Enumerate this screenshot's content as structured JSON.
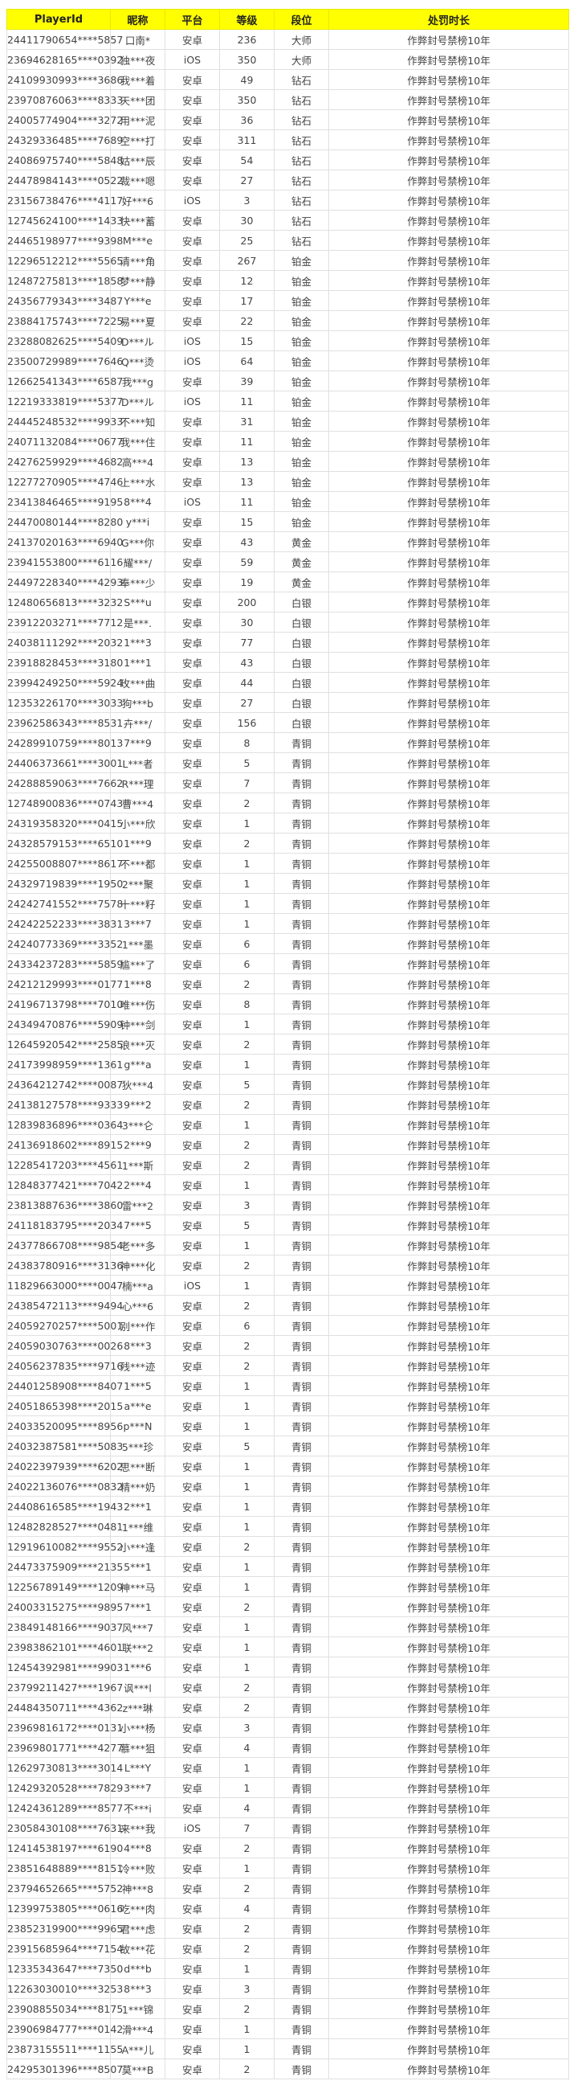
{
  "table": {
    "header_bg": "#ffff00",
    "columns": [
      "PlayerId",
      "昵称",
      "平台",
      "等级",
      "段位",
      "处罚时长"
    ],
    "rows": [
      [
        "24411790654****5857",
        "口南*",
        "安卓",
        "236",
        "大师",
        "作弊封号禁榜10年"
      ],
      [
        "23694628165****0392",
        "独***夜",
        "iOS",
        "350",
        "大师",
        "作弊封号禁榜10年"
      ],
      [
        "24109930993****3686",
        "我***着",
        "安卓",
        "49",
        "钻石",
        "作弊封号禁榜10年"
      ],
      [
        "23970876063****8333",
        "天***团",
        "安卓",
        "350",
        "钻石",
        "作弊封号禁榜10年"
      ],
      [
        "24005774904****3272",
        "用***泥",
        "安卓",
        "36",
        "钻石",
        "作弊封号禁榜10年"
      ],
      [
        "24329336485****7689",
        "空***打",
        "安卓",
        "311",
        "钻石",
        "作弊封号禁榜10年"
      ],
      [
        "24086975740****5848",
        "姑***辰",
        "安卓",
        "54",
        "钻石",
        "作弊封号禁榜10年"
      ],
      [
        "24478984143****0522",
        "裁***嗯",
        "安卓",
        "27",
        "钻石",
        "作弊封号禁榜10年"
      ],
      [
        "23156738476****4117",
        "好***6",
        "iOS",
        "3",
        "钻石",
        "作弊封号禁榜10年"
      ],
      [
        "12745624100****1433",
        "快***蓄",
        "安卓",
        "30",
        "钻石",
        "作弊封号禁榜10年"
      ],
      [
        "24465198977****9398",
        "M***e",
        "安卓",
        "25",
        "钻石",
        "作弊封号禁榜10年"
      ],
      [
        "12296512212****5565",
        "清***角",
        "安卓",
        "267",
        "铂金",
        "作弊封号禁榜10年"
      ],
      [
        "12487275813****1858",
        "梦***静",
        "安卓",
        "12",
        "铂金",
        "作弊封号禁榜10年"
      ],
      [
        "24356779343****3487",
        "Y***e",
        "安卓",
        "17",
        "铂金",
        "作弊封号禁榜10年"
      ],
      [
        "23884175743****7225",
        "易***夏",
        "安卓",
        "22",
        "铂金",
        "作弊封号禁榜10年"
      ],
      [
        "23288082625****5409",
        "D***ル",
        "iOS",
        "15",
        "铂金",
        "作弊封号禁榜10年"
      ],
      [
        "23500729989****7646",
        "Q***烫",
        "iOS",
        "64",
        "铂金",
        "作弊封号禁榜10年"
      ],
      [
        "12662541343****6587",
        "我***g",
        "安卓",
        "39",
        "铂金",
        "作弊封号禁榜10年"
      ],
      [
        "12219333819****5377",
        "D***ル",
        "iOS",
        "11",
        "铂金",
        "作弊封号禁榜10年"
      ],
      [
        "24445248532****9933",
        "不***知",
        "安卓",
        "31",
        "铂金",
        "作弊封号禁榜10年"
      ],
      [
        "24071132084****0677",
        "我***住",
        "安卓",
        "11",
        "铂金",
        "作弊封号禁榜10年"
      ],
      [
        "24276259929****4682",
        "高***4",
        "安卓",
        "13",
        "铂金",
        "作弊封号禁榜10年"
      ],
      [
        "12277270905****4746",
        "上***水",
        "安卓",
        "13",
        "铂金",
        "作弊封号禁榜10年"
      ],
      [
        "23413846465****9195",
        "8***4",
        "iOS",
        "11",
        "铂金",
        "作弊封号禁榜10年"
      ],
      [
        "24470080144****8280",
        "y***i",
        "安卓",
        "15",
        "铂金",
        "作弊封号禁榜10年"
      ],
      [
        "24137020163****6940",
        "G***你",
        "安卓",
        "43",
        "黄金",
        "作弊封号禁榜10年"
      ],
      [
        "23941553800****6116",
        "耀***/",
        "安卓",
        "59",
        "黄金",
        "作弊封号禁榜10年"
      ],
      [
        "24497228340****4293",
        "奉***少",
        "安卓",
        "19",
        "黄金",
        "作弊封号禁榜10年"
      ],
      [
        "12480656813****3232",
        "S***u",
        "安卓",
        "200",
        "白银",
        "作弊封号禁榜10年"
      ],
      [
        "23912203271****7712",
        "是***.",
        "安卓",
        "30",
        "白银",
        "作弊封号禁榜10年"
      ],
      [
        "24038111292****2032",
        "1***3",
        "安卓",
        "77",
        "白银",
        "作弊封号禁榜10年"
      ],
      [
        "23918828453****3180",
        "1***1",
        "安卓",
        "43",
        "白银",
        "作弊封号禁榜10年"
      ],
      [
        "23994249250****5924",
        "玫***曲",
        "安卓",
        "44",
        "白银",
        "作弊封号禁榜10年"
      ],
      [
        "12353226170****3033",
        "狗***b",
        "安卓",
        "27",
        "白银",
        "作弊封号禁榜10年"
      ],
      [
        "23962586343****8531",
        "卉***/",
        "安卓",
        "156",
        "白银",
        "作弊封号禁榜10年"
      ],
      [
        "24289910759****8013",
        "7***9",
        "安卓",
        "8",
        "青铜",
        "作弊封号禁榜10年"
      ],
      [
        "24406373661****3001",
        "L***者",
        "安卓",
        "5",
        "青铜",
        "作弊封号禁榜10年"
      ],
      [
        "24288859063****7662",
        "R***理",
        "安卓",
        "7",
        "青铜",
        "作弊封号禁榜10年"
      ],
      [
        "12748900836****0743",
        "曹***4",
        "安卓",
        "2",
        "青铜",
        "作弊封号禁榜10年"
      ],
      [
        "24319358320****0415",
        "小***欣",
        "安卓",
        "1",
        "青铜",
        "作弊封号禁榜10年"
      ],
      [
        "24328579153****6510",
        "1***9",
        "安卓",
        "2",
        "青铜",
        "作弊封号禁榜10年"
      ],
      [
        "24255008807****8617",
        "不***都",
        "安卓",
        "1",
        "青铜",
        "作弊封号禁榜10年"
      ],
      [
        "24329719839****1950",
        "2***聚",
        "安卓",
        "1",
        "青铜",
        "作弊封号禁榜10年"
      ],
      [
        "24242741552****7578",
        "十***籽",
        "安卓",
        "1",
        "青铜",
        "作弊封号禁榜10年"
      ],
      [
        "24242252233****3831",
        "3***7",
        "安卓",
        "1",
        "青铜",
        "作弊封号禁榜10年"
      ],
      [
        "24240773369****3352",
        "1***墨",
        "安卓",
        "6",
        "青铜",
        "作弊封号禁榜10年"
      ],
      [
        "24334237283****5859",
        "尴***了",
        "安卓",
        "6",
        "青铜",
        "作弊封号禁榜10年"
      ],
      [
        "24212129993****0177",
        "1***8",
        "安卓",
        "2",
        "青铜",
        "作弊封号禁榜10年"
      ],
      [
        "24196713798****7010",
        "唯***伤",
        "安卓",
        "8",
        "青铜",
        "作弊封号禁榜10年"
      ],
      [
        "24349470876****5909",
        "钟***剑",
        "安卓",
        "1",
        "青铜",
        "作弊封号禁榜10年"
      ],
      [
        "12645920542****2585",
        "浪***灭",
        "安卓",
        "2",
        "青铜",
        "作弊封号禁榜10年"
      ],
      [
        "24173998959****1361",
        "g***a",
        "安卓",
        "1",
        "青铜",
        "作弊封号禁榜10年"
      ],
      [
        "24364212742****0087",
        "狄***4",
        "安卓",
        "5",
        "青铜",
        "作弊封号禁榜10年"
      ],
      [
        "24138127578****9333",
        "9***2",
        "安卓",
        "2",
        "青铜",
        "作弊封号禁榜10年"
      ],
      [
        "12839836896****0364",
        "3***仑",
        "安卓",
        "1",
        "青铜",
        "作弊封号禁榜10年"
      ],
      [
        "24136918602****8915",
        "2***9",
        "安卓",
        "2",
        "青铜",
        "作弊封号禁榜10年"
      ],
      [
        "12285417203****4561",
        "1***斯",
        "安卓",
        "2",
        "青铜",
        "作弊封号禁榜10年"
      ],
      [
        "12848377421****7042",
        "2***4",
        "安卓",
        "1",
        "青铜",
        "作弊封号禁榜10年"
      ],
      [
        "23813887636****3860",
        "雷***2",
        "安卓",
        "3",
        "青铜",
        "作弊封号禁榜10年"
      ],
      [
        "24118183795****2034",
        "7***5",
        "安卓",
        "5",
        "青铜",
        "作弊封号禁榜10年"
      ],
      [
        "24377866708****9854",
        "老***多",
        "安卓",
        "1",
        "青铜",
        "作弊封号禁榜10年"
      ],
      [
        "24383780916****3136",
        "神***化",
        "安卓",
        "2",
        "青铜",
        "作弊封号禁榜10年"
      ],
      [
        "11829663000****0047",
        "楠***a",
        "iOS",
        "1",
        "青铜",
        "作弊封号禁榜10年"
      ],
      [
        "24385472113****9494",
        "心***6",
        "安卓",
        "2",
        "青铜",
        "作弊封号禁榜10年"
      ],
      [
        "24059270257****5001",
        "别***作",
        "安卓",
        "6",
        "青铜",
        "作弊封号禁榜10年"
      ],
      [
        "24059030763****0026",
        "8***3",
        "安卓",
        "2",
        "青铜",
        "作弊封号禁榜10年"
      ],
      [
        "24056237835****9716",
        "残***迹",
        "安卓",
        "2",
        "青铜",
        "作弊封号禁榜10年"
      ],
      [
        "24401258908****8407",
        "1***5",
        "安卓",
        "1",
        "青铜",
        "作弊封号禁榜10年"
      ],
      [
        "24051865398****2015",
        "a***e",
        "安卓",
        "1",
        "青铜",
        "作弊封号禁榜10年"
      ],
      [
        "24033520095****8956",
        "p***N",
        "安卓",
        "1",
        "青铜",
        "作弊封号禁榜10年"
      ],
      [
        "24032387581****5083",
        "5***珍",
        "安卓",
        "5",
        "青铜",
        "作弊封号禁榜10年"
      ],
      [
        "24022397939****6202",
        "思***断",
        "安卓",
        "1",
        "青铜",
        "作弊封号禁榜10年"
      ],
      [
        "24022136076****0832",
        "精***奶",
        "安卓",
        "1",
        "青铜",
        "作弊封号禁榜10年"
      ],
      [
        "24408616585****1943",
        "2***1",
        "安卓",
        "1",
        "青铜",
        "作弊封号禁榜10年"
      ],
      [
        "12482828527****0481",
        "1***维",
        "安卓",
        "1",
        "青铜",
        "作弊封号禁榜10年"
      ],
      [
        "12919610082****9552",
        "小***逢",
        "安卓",
        "2",
        "青铜",
        "作弊封号禁榜10年"
      ],
      [
        "24473375909****2135",
        "5***1",
        "安卓",
        "1",
        "青铜",
        "作弊封号禁榜10年"
      ],
      [
        "12256789149****1209",
        "神***马",
        "安卓",
        "1",
        "青铜",
        "作弊封号禁榜10年"
      ],
      [
        "24003315275****9895",
        "7***1",
        "安卓",
        "2",
        "青铜",
        "作弊封号禁榜10年"
      ],
      [
        "23849148166****9037",
        "风***7",
        "安卓",
        "1",
        "青铜",
        "作弊封号禁榜10年"
      ],
      [
        "23983862101****4601",
        "联***2",
        "安卓",
        "1",
        "青铜",
        "作弊封号禁榜10年"
      ],
      [
        "12454392981****9903",
        "1***6",
        "安卓",
        "1",
        "青铜",
        "作弊封号禁榜10年"
      ],
      [
        "23799211427****1967",
        "讽***l",
        "安卓",
        "2",
        "青铜",
        "作弊封号禁榜10年"
      ],
      [
        "24484350711****4362",
        "z***琳",
        "安卓",
        "2",
        "青铜",
        "作弊封号禁榜10年"
      ],
      [
        "23969816172****0131",
        "小***杨",
        "安卓",
        "3",
        "青铜",
        "作弊封号禁榜10年"
      ],
      [
        "23969801771****4277",
        "慕***狙",
        "安卓",
        "4",
        "青铜",
        "作弊封号禁榜10年"
      ],
      [
        "12629730813****3014",
        "L***Y",
        "安卓",
        "1",
        "青铜",
        "作弊封号禁榜10年"
      ],
      [
        "12429320528****7829",
        "3***7",
        "安卓",
        "1",
        "青铜",
        "作弊封号禁榜10年"
      ],
      [
        "12424361289****8577",
        "不***i",
        "安卓",
        "4",
        "青铜",
        "作弊封号禁榜10年"
      ],
      [
        "23058430108****7631",
        "来***我",
        "iOS",
        "7",
        "青铜",
        "作弊封号禁榜10年"
      ],
      [
        "12414538197****6190",
        "4***8",
        "安卓",
        "2",
        "青铜",
        "作弊封号禁榜10年"
      ],
      [
        "23851648889****8151",
        "冷***败",
        "安卓",
        "1",
        "青铜",
        "作弊封号禁榜10年"
      ],
      [
        "23794652665****5752",
        "神***8",
        "安卓",
        "2",
        "青铜",
        "作弊封号禁榜10年"
      ],
      [
        "12399753805****0616",
        "吃***肉",
        "安卓",
        "4",
        "青铜",
        "作弊封号禁榜10年"
      ],
      [
        "23852319900****9965",
        "君***虑",
        "安卓",
        "2",
        "青铜",
        "作弊封号禁榜10年"
      ],
      [
        "23915685964****7154",
        "故***花",
        "安卓",
        "2",
        "青铜",
        "作弊封号禁榜10年"
      ],
      [
        "12335343647****7350",
        "d***b",
        "安卓",
        "1",
        "青铜",
        "作弊封号禁榜10年"
      ],
      [
        "12263030010****3253",
        "8***3",
        "安卓",
        "3",
        "青铜",
        "作弊封号禁榜10年"
      ],
      [
        "23908855034****8175",
        "1***锦",
        "安卓",
        "2",
        "青铜",
        "作弊封号禁榜10年"
      ],
      [
        "23906984777****0142",
        "滑***4",
        "安卓",
        "1",
        "青铜",
        "作弊封号禁榜10年"
      ],
      [
        "23873155511****1155",
        "A***儿",
        "安卓",
        "1",
        "青铜",
        "作弊封号禁榜10年"
      ],
      [
        "24295301396****8507",
        "莫***B",
        "安卓",
        "2",
        "青铜",
        "作弊封号禁榜10年"
      ]
    ]
  }
}
